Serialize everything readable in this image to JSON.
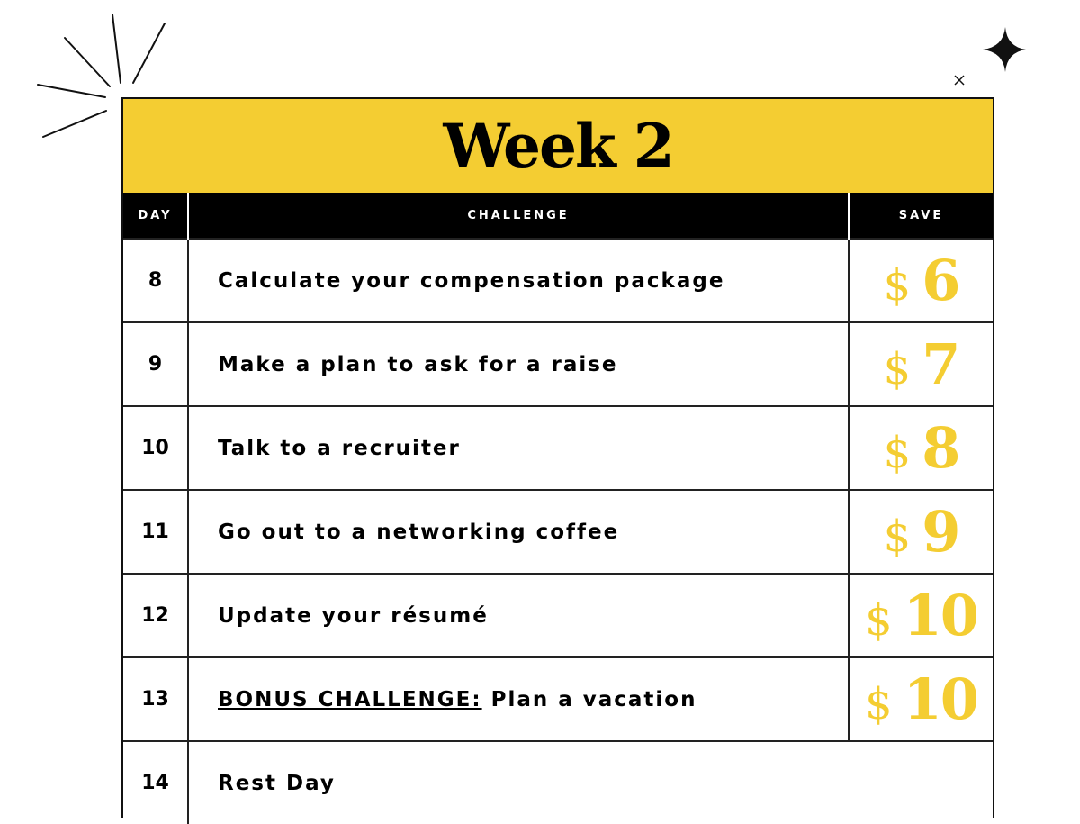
{
  "title": "Week 2",
  "headers": {
    "day": "DAY",
    "challenge": "CHALLENGE",
    "save": "SAVE"
  },
  "colors": {
    "accent": "#F4CD32",
    "header_bg": "#000000"
  },
  "currency": "$",
  "rows": [
    {
      "day": "8",
      "challenge": "Calculate your compensation package",
      "save": "6"
    },
    {
      "day": "9",
      "challenge": "Make a plan to ask for a raise",
      "save": "7"
    },
    {
      "day": "10",
      "challenge": "Talk to a recruiter",
      "save": "8"
    },
    {
      "day": "11",
      "challenge": "Go out to a networking coffee",
      "save": "9"
    },
    {
      "day": "12",
      "challenge": "Update your résumé",
      "save": "10"
    },
    {
      "day": "13",
      "bonus_label": "BONUS CHALLENGE:",
      "challenge": "Plan a vacation",
      "save": "10"
    },
    {
      "day": "14",
      "challenge": "Rest Day"
    }
  ]
}
